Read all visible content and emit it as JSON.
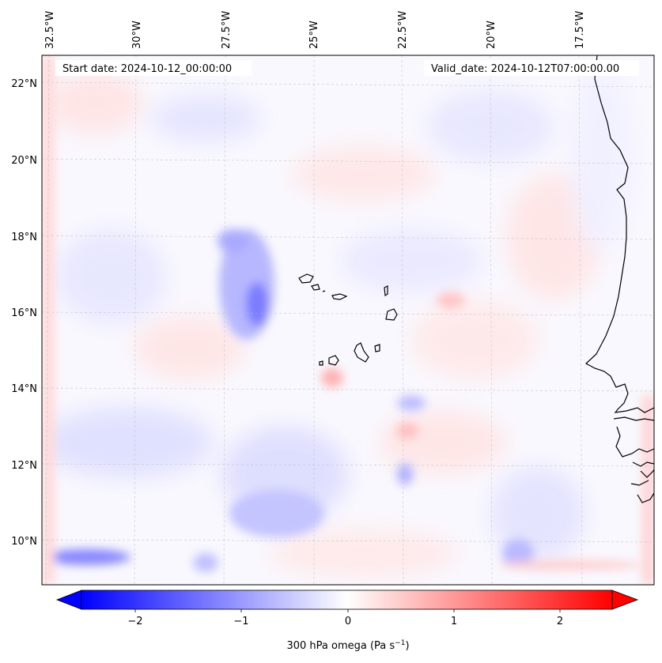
{
  "map": {
    "start_label": "Start date: 2024-10-12_00:00:00",
    "valid_label": "Valid_date: 2024-10-12T07:00:00.00",
    "lon_labels": [
      "32.5°W",
      "30°W",
      "27.5°W",
      "25°W",
      "22.5°W",
      "20°W",
      "17.5°W"
    ],
    "lat_labels": [
      "22°N",
      "20°N",
      "18°N",
      "16°N",
      "14°N",
      "12°N",
      "10°N"
    ]
  },
  "colorbar": {
    "ticks": [
      "−2",
      "−1",
      "0",
      "1",
      "2"
    ],
    "label": "300 hPa omega (Pa s",
    "label_sup": "−1",
    "label_end": ")"
  },
  "colors": {
    "negative": "#0000ff",
    "neutral": "#ffffff",
    "positive": "#ff0000",
    "coast": "#000000"
  }
}
